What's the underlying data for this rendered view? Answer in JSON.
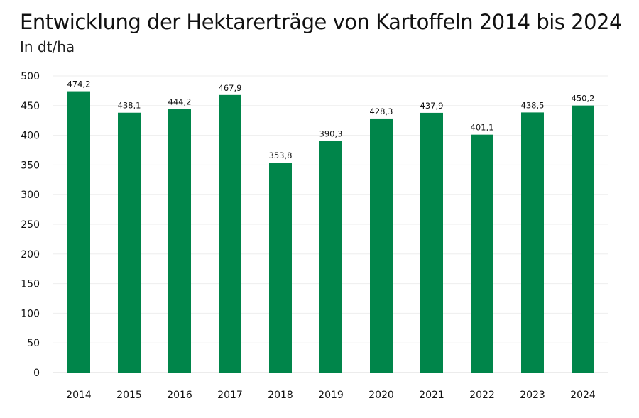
{
  "chart_data": {
    "type": "bar",
    "title": "Entwicklung der Hektarerträge von Kartoffeln 2014 bis 2024",
    "subtitle": "In dt/ha",
    "categories": [
      "2014",
      "2015",
      "2016",
      "2017",
      "2018",
      "2019",
      "2020",
      "2021",
      "2022",
      "2023",
      "2024"
    ],
    "values": [
      474.2,
      438.1,
      444.2,
      467.9,
      353.8,
      390.3,
      428.3,
      437.9,
      401.1,
      438.5,
      450.2
    ],
    "value_labels": [
      "474,2",
      "438,1",
      "444,2",
      "467,9",
      "353,8",
      "390,3",
      "428,3",
      "437,9",
      "401,1",
      "438,5",
      "450,2"
    ],
    "ylim": [
      0,
      500
    ],
    "yticks": [
      0,
      50,
      100,
      150,
      200,
      250,
      300,
      350,
      400,
      450,
      500
    ],
    "grid": true,
    "bar_color": "#00854A"
  }
}
